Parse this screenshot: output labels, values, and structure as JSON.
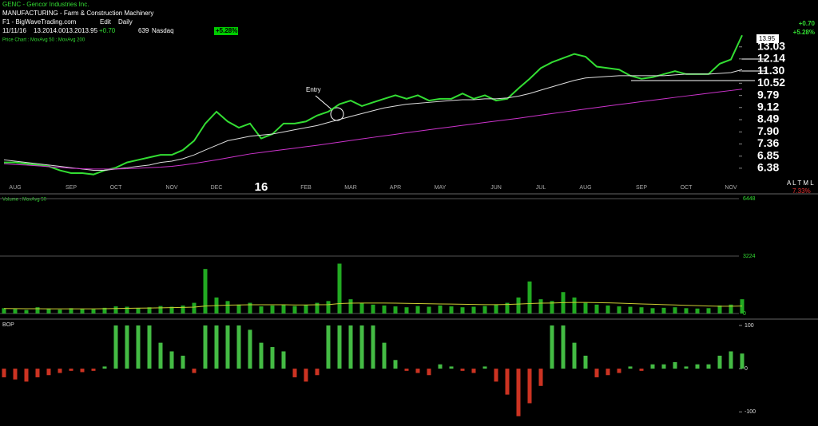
{
  "header": {
    "title": "GENC - Gencor Industries Inc.",
    "industry": "MANUFACTURING - Farm & Construction Machinery",
    "source": "F1 - BigWaveTrading.com",
    "edit": "Edit",
    "period": "Daily",
    "quote": [
      "11/11/16",
      "13.20",
      "14.00",
      "13.20",
      "13.95",
      "+0.70",
      "639",
      "Nasdaq"
    ],
    "change_box": "+5.28%",
    "right_change": "+0.70",
    "right_pct": "+5.28%",
    "price_tag": "13.95",
    "altml": "A L T M L",
    "altml_pct": "7.33%"
  },
  "chart_data": [
    {
      "type": "line",
      "title": "Price Chart : MovAvg 50 : MovAvg 200",
      "log_scale": true,
      "annotation": "Entry",
      "categories": [
        null,
        "AUG",
        null,
        null,
        null,
        null,
        "SEP",
        null,
        null,
        null,
        "OCT",
        null,
        null,
        null,
        null,
        "NOV",
        null,
        null,
        null,
        "DEC",
        null,
        null,
        null,
        "16",
        null,
        null,
        null,
        "FEB",
        null,
        null,
        null,
        "MAR",
        null,
        null,
        null,
        "APR",
        null,
        null,
        null,
        "MAY",
        null,
        null,
        null,
        null,
        "JUN",
        null,
        null,
        null,
        "JUL",
        null,
        null,
        null,
        "AUG",
        null,
        null,
        null,
        null,
        "SEP",
        null,
        null,
        null,
        "OCT",
        null,
        null,
        null,
        "NOV",
        null
      ],
      "ylim": [
        5.97,
        13.9
      ],
      "yticks": [
        {
          "value": 13.03,
          "label": "13.03"
        },
        12.14,
        {
          "value": 11.3,
          "label": "11.30"
        },
        10.52,
        9.79,
        9.12,
        8.49,
        {
          "value": 7.9,
          "label": "7.90"
        },
        7.36,
        6.85,
        6.38
      ],
      "series": [
        {
          "name": "Price Chart",
          "color": "#33dd33",
          "style": "line",
          "values": [
            6.6,
            6.6,
            6.55,
            6.5,
            6.45,
            6.3,
            6.2,
            6.2,
            6.15,
            6.3,
            6.4,
            6.6,
            6.7,
            6.8,
            6.9,
            6.9,
            7.1,
            7.5,
            8.3,
            8.9,
            8.4,
            8.1,
            8.3,
            7.6,
            7.8,
            8.3,
            8.3,
            8.4,
            8.7,
            8.9,
            9.3,
            9.5,
            9.2,
            9.4,
            9.6,
            9.8,
            9.6,
            9.8,
            9.5,
            9.6,
            9.6,
            9.9,
            9.6,
            9.8,
            9.5,
            9.6,
            10.2,
            10.8,
            11.5,
            11.9,
            12.2,
            12.5,
            12.3,
            11.6,
            11.5,
            11.4,
            11.0,
            10.8,
            10.9,
            11.1,
            11.3,
            11.1,
            11.1,
            11.1,
            11.8,
            12.1,
            13.95
          ]
        },
        {
          "name": "MovAvg 50",
          "color": "#dddddd",
          "style": "line",
          "values": [
            6.7,
            6.65,
            6.6,
            6.55,
            6.5,
            6.45,
            6.4,
            6.35,
            6.3,
            6.3,
            6.35,
            6.4,
            6.45,
            6.5,
            6.6,
            6.65,
            6.75,
            6.9,
            7.1,
            7.3,
            7.5,
            7.6,
            7.7,
            7.75,
            7.8,
            7.9,
            8.0,
            8.1,
            8.2,
            8.35,
            8.5,
            8.65,
            8.8,
            8.95,
            9.1,
            9.2,
            9.3,
            9.35,
            9.4,
            9.45,
            9.5,
            9.55,
            9.55,
            9.6,
            9.6,
            9.65,
            9.75,
            9.9,
            10.1,
            10.3,
            10.5,
            10.7,
            10.85,
            10.9,
            10.95,
            11.0,
            11.0,
            11.0,
            11.0,
            11.0,
            11.05,
            11.1,
            11.1,
            11.1,
            11.15,
            11.2,
            11.4
          ]
        },
        {
          "name": "MovAvg 200",
          "color": "#cc33cc",
          "style": "line",
          "values": [
            6.55,
            6.52,
            6.5,
            6.47,
            6.44,
            6.41,
            6.38,
            6.36,
            6.35,
            6.35,
            6.35,
            6.36,
            6.38,
            6.4,
            6.42,
            6.45,
            6.5,
            6.56,
            6.63,
            6.7,
            6.78,
            6.86,
            6.94,
            7.0,
            7.06,
            7.12,
            7.18,
            7.24,
            7.3,
            7.37,
            7.44,
            7.51,
            7.58,
            7.65,
            7.72,
            7.79,
            7.86,
            7.93,
            8.0,
            8.07,
            8.14,
            8.21,
            8.28,
            8.35,
            8.42,
            8.49,
            8.56,
            8.64,
            8.72,
            8.8,
            8.88,
            8.96,
            9.04,
            9.12,
            9.2,
            9.28,
            9.36,
            9.44,
            9.52,
            9.6,
            9.68,
            9.76,
            9.84,
            9.92,
            10.0,
            10.08,
            10.16
          ]
        }
      ]
    },
    {
      "type": "bar",
      "title": "Volume : MovAvg 50",
      "ylim": [
        0,
        6448
      ],
      "yticks": [
        0,
        3224,
        6448
      ],
      "grid": true,
      "series": [
        {
          "name": "Volume",
          "color": "#22aa22",
          "style": "bar",
          "values": [
            300,
            250,
            200,
            350,
            280,
            220,
            300,
            260,
            240,
            320,
            400,
            380,
            300,
            350,
            420,
            380,
            450,
            600,
            2500,
            900,
            700,
            500,
            600,
            400,
            450,
            500,
            420,
            480,
            600,
            700,
            2800,
            800,
            600,
            500,
            450,
            400,
            350,
            420,
            380,
            450,
            400,
            350,
            380,
            420,
            500,
            600,
            900,
            1800,
            800,
            700,
            1200,
            900,
            600,
            500,
            450,
            400,
            380,
            350,
            300,
            320,
            350,
            300,
            280,
            300,
            450,
            500,
            800
          ]
        },
        {
          "name": "MovAvg 50",
          "color": "#cccc33",
          "style": "line",
          "values": [
            280,
            275,
            270,
            270,
            265,
            265,
            265,
            265,
            265,
            270,
            280,
            290,
            300,
            310,
            320,
            330,
            340,
            360,
            420,
            450,
            470,
            480,
            490,
            490,
            490,
            490,
            480,
            480,
            490,
            500,
            560,
            580,
            590,
            590,
            590,
            580,
            570,
            560,
            550,
            540,
            530,
            520,
            510,
            500,
            500,
            510,
            530,
            560,
            580,
            590,
            610,
            620,
            620,
            610,
            600,
            580,
            560,
            540,
            520,
            500,
            480,
            460,
            440,
            420,
            410,
            410,
            420
          ]
        }
      ]
    },
    {
      "type": "bar",
      "title": "BOP",
      "ylim": [
        -129,
        111
      ],
      "yticks": [
        100,
        0,
        -100
      ],
      "series": [
        {
          "name": "BOP",
          "color": "#44bb44",
          "negative_color": "#cc3322",
          "style": "bar",
          "values": [
            -20,
            -25,
            -30,
            -20,
            -15,
            -10,
            -5,
            -8,
            -5,
            5,
            100,
            100,
            100,
            100,
            60,
            40,
            30,
            -10,
            100,
            100,
            100,
            100,
            90,
            60,
            50,
            40,
            -20,
            -30,
            -15,
            100,
            100,
            100,
            100,
            100,
            60,
            20,
            -5,
            -10,
            -15,
            10,
            5,
            -5,
            -10,
            5,
            -30,
            -60,
            -110,
            -80,
            -40,
            100,
            100,
            60,
            30,
            -20,
            -15,
            -10,
            5,
            -5,
            10,
            10,
            15,
            5,
            10,
            10,
            30,
            40,
            35
          ]
        }
      ]
    }
  ]
}
